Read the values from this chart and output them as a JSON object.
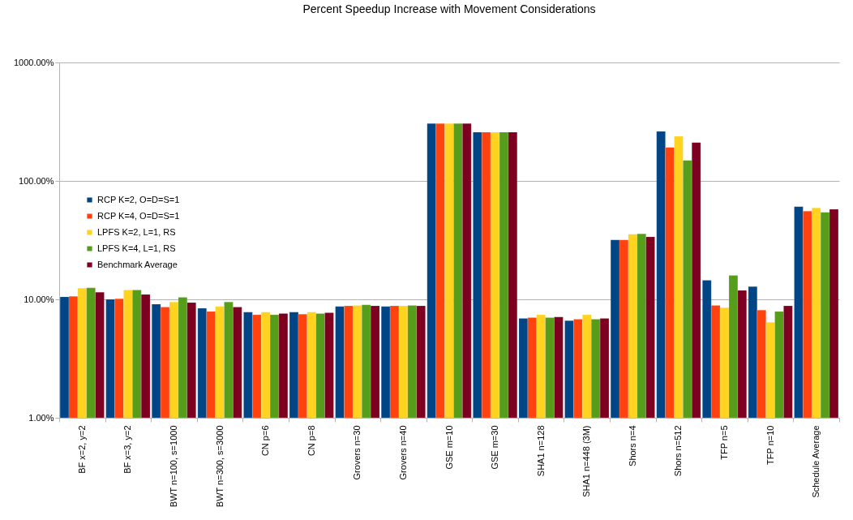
{
  "chart_data": {
    "type": "bar",
    "title": "Percent Speedup Increase with Movement Considerations",
    "categories": [
      "BF x=2, y=2",
      "BF x=3, y=2",
      "BWT n=100, s=1000",
      "BWT n=300, s=3000",
      "CN p=6",
      "CN p=8",
      "Grovers n=30",
      "Grovers n=40",
      "GSE m=10",
      "GSE m=30",
      "SHA1 n=128",
      "SHA1 n=448 (3M)",
      "Shors n=4",
      "Shors n=512",
      "TFP n=5",
      "TFP n=10",
      "Schedule Average"
    ],
    "series": [
      {
        "name": "RCP K=2, O=D=S=1",
        "color": "#004586",
        "values": [
          10.5,
          10.0,
          9.1,
          8.4,
          7.8,
          7.8,
          8.7,
          8.7,
          305,
          258,
          6.9,
          6.6,
          31.8,
          262,
          14.5,
          12.8,
          60.7
        ]
      },
      {
        "name": "RCP K=4, O=D=S=1",
        "color": "#ff420e",
        "values": [
          10.6,
          10.1,
          8.6,
          7.9,
          7.4,
          7.5,
          8.8,
          8.8,
          305,
          258,
          7.0,
          6.8,
          31.8,
          192,
          8.9,
          8.1,
          55.6
        ]
      },
      {
        "name": "LPFS K=2, L=1, RS",
        "color": "#ffd320",
        "values": [
          12.4,
          12.0,
          9.5,
          8.7,
          7.8,
          7.8,
          8.9,
          8.8,
          305,
          258,
          7.4,
          7.4,
          35.5,
          238,
          8.5,
          6.4,
          59.1
        ]
      },
      {
        "name": "LPFS K=4, L=1, RS",
        "color": "#579d1c",
        "values": [
          12.5,
          12.0,
          10.4,
          9.5,
          7.4,
          7.6,
          9.0,
          8.9,
          305,
          258,
          7.0,
          6.8,
          35.8,
          149,
          15.9,
          7.9,
          54.3
        ]
      },
      {
        "name": "Benchmark Average",
        "color": "#7e0021",
        "values": [
          11.5,
          11.0,
          9.4,
          8.6,
          7.6,
          7.7,
          8.8,
          8.8,
          305,
          258,
          7.1,
          6.9,
          33.7,
          211,
          11.9,
          8.8,
          57.6
        ]
      }
    ],
    "log": true,
    "ylim": [
      1,
      1000
    ],
    "yticks": [
      {
        "value": 1,
        "label": "1.00%"
      },
      {
        "value": 10,
        "label": "10.00%"
      },
      {
        "value": 100,
        "label": "100.00%"
      },
      {
        "value": 1000,
        "label": "1000.00%"
      }
    ],
    "grid": "y",
    "legend": "left"
  }
}
